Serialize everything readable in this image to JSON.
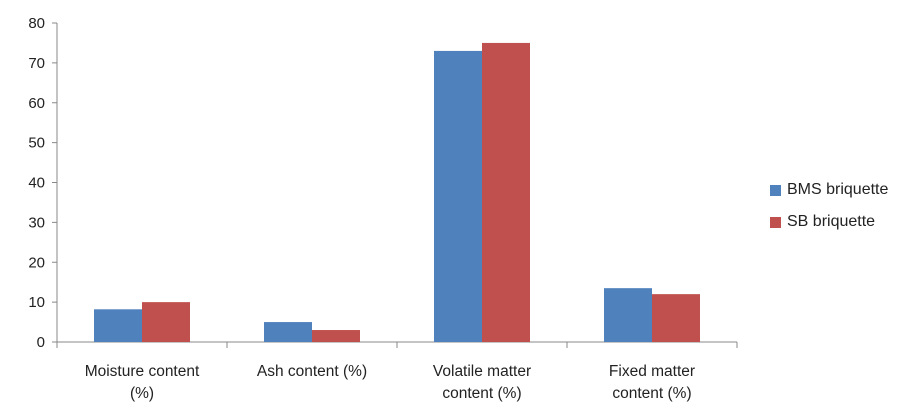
{
  "chart_data": {
    "type": "bar",
    "categories": [
      [
        "Moisture content",
        "(%)"
      ],
      [
        "Ash content (%)"
      ],
      [
        "Volatile matter",
        "content (%)"
      ],
      [
        "Fixed matter",
        "content (%)"
      ]
    ],
    "series": [
      {
        "name": "BMS briquette",
        "color": "#4F81BD",
        "values": [
          8.2,
          5,
          73,
          13.5
        ]
      },
      {
        "name": "SB briquette",
        "color": "#C0504D",
        "values": [
          10,
          3,
          75,
          12
        ]
      }
    ],
    "ylim": [
      0,
      80
    ],
    "yticks": [
      0,
      10,
      20,
      30,
      40,
      50,
      60,
      70,
      80
    ],
    "grid": false,
    "legend_position": "right"
  }
}
